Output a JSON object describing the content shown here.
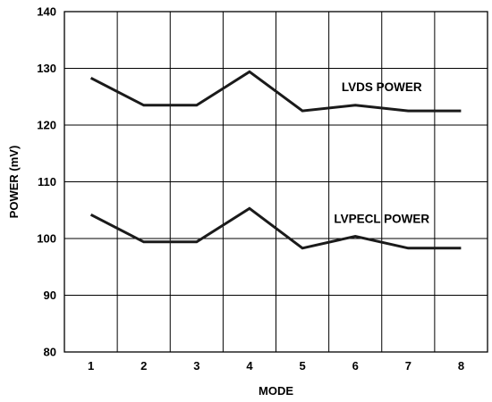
{
  "chart_data": {
    "type": "line",
    "title": "",
    "xlabel": "MODE",
    "ylabel": "POWER (mV)",
    "x": [
      1,
      2,
      3,
      4,
      5,
      6,
      7,
      8
    ],
    "xticks": [
      "1",
      "2",
      "3",
      "4",
      "5",
      "6",
      "7",
      "8"
    ],
    "xlim": [
      0.5,
      8.5
    ],
    "ylim": [
      80,
      140
    ],
    "yticks": [
      "80",
      "90",
      "100",
      "110",
      "120",
      "130",
      "140"
    ],
    "grid": true,
    "legend": "none",
    "series": [
      {
        "name": "LVDS POWER",
        "values": [
          128.3,
          123.5,
          123.5,
          129.4,
          122.5,
          123.5,
          122.5,
          122.5
        ],
        "color": "#1a1a1a"
      },
      {
        "name": "LVPECL POWER",
        "values": [
          104.2,
          99.4,
          99.4,
          105.3,
          98.3,
          100.4,
          98.3,
          98.3
        ],
        "color": "#1a1a1a"
      }
    ]
  }
}
